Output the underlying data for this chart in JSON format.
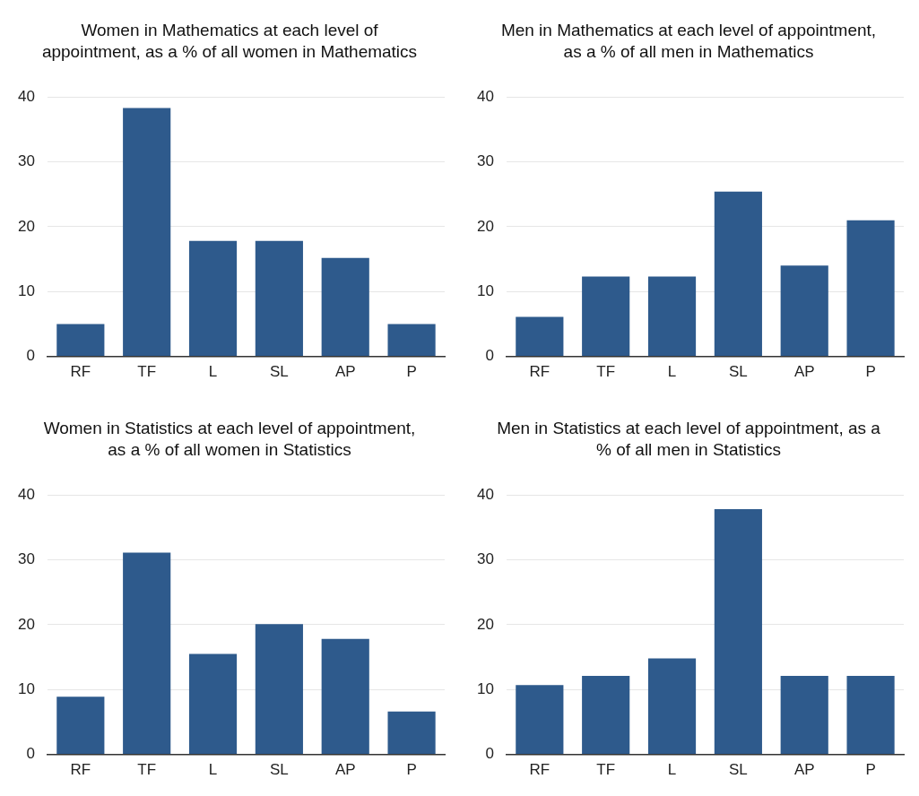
{
  "chart_data": [
    {
      "type": "bar",
      "title": "Women in Mathematics at each level of appointment, as a % of all women in Mathematics",
      "categories": [
        "RF",
        "TF",
        "L",
        "SL",
        "AP",
        "P"
      ],
      "values": [
        5.0,
        38.3,
        17.8,
        17.8,
        15.2,
        5.0
      ],
      "color": "#2e5a8c",
      "ylim": [
        0,
        40
      ],
      "yticks": [
        0,
        10,
        20,
        30,
        40
      ],
      "grid": "y"
    },
    {
      "type": "bar",
      "title": "Men in Mathematics at each level of appointment, as a % of all men in Mathematics",
      "categories": [
        "RF",
        "TF",
        "L",
        "SL",
        "AP",
        "P"
      ],
      "values": [
        6.1,
        12.3,
        12.3,
        25.4,
        14.0,
        21.0
      ],
      "color": "#2e5a8c",
      "ylim": [
        0,
        40
      ],
      "yticks": [
        0,
        10,
        20,
        30,
        40
      ],
      "grid": "y"
    },
    {
      "type": "bar",
      "title": "Women in Statistics at each level of appointment, as a % of all women in Statistics",
      "categories": [
        "RF",
        "TF",
        "L",
        "SL",
        "AP",
        "P"
      ],
      "values": [
        8.9,
        31.1,
        15.5,
        20.1,
        17.8,
        6.6
      ],
      "color": "#2e5a8c",
      "ylim": [
        0,
        40
      ],
      "yticks": [
        0,
        10,
        20,
        30,
        40
      ],
      "grid": "y"
    },
    {
      "type": "bar",
      "title": "Men in Statistics at each level of appointment, as a % of all men in Statistics",
      "categories": [
        "RF",
        "TF",
        "L",
        "SL",
        "AP",
        "P"
      ],
      "values": [
        10.7,
        12.1,
        14.8,
        37.8,
        12.1,
        12.1
      ],
      "color": "#2e5a8c",
      "ylim": [
        0,
        40
      ],
      "yticks": [
        0,
        10,
        20,
        30,
        40
      ],
      "grid": "y"
    }
  ]
}
